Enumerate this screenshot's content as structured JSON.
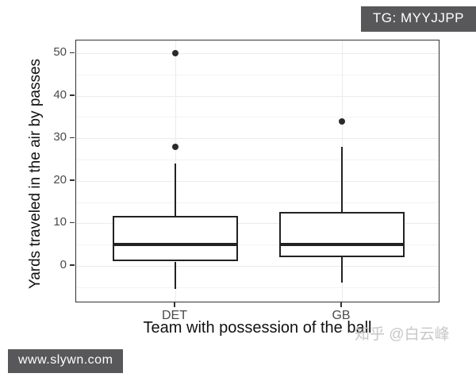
{
  "badges": {
    "tg": "TG: MYYJJPP",
    "site": "www.slywn.com"
  },
  "watermark": "知乎 @白云峰",
  "chart_data": {
    "type": "boxplot",
    "title": "",
    "xlabel": "Team with possession of the ball",
    "ylabel": "Yards traveled in the air by passes",
    "categories": [
      "DET",
      "GB"
    ],
    "y_ticks": [
      0,
      10,
      20,
      30,
      40,
      50
    ],
    "y_minor_ticks": [
      -5,
      5,
      15,
      25,
      35,
      45
    ],
    "ylim": [
      -8.8,
      53
    ],
    "grid": "horizontal major+minor, vertical major at categories",
    "legend": "none",
    "series": [
      {
        "name": "DET",
        "whisker_low": -5.5,
        "q1": 1,
        "median": 5,
        "q3": 11.7,
        "whisker_high": 24,
        "outliers": [
          28,
          50
        ]
      },
      {
        "name": "GB",
        "whisker_low": -4,
        "q1": 2,
        "median": 5,
        "q3": 12.7,
        "whisker_high": 28,
        "outliers": [
          34
        ]
      }
    ]
  },
  "colors": {
    "badge_bg": "#58585a",
    "badge_text": "#ffffff",
    "panel_border": "#333333",
    "grid_major": "#ebebeb",
    "grid_minor": "#f3f3f3",
    "box_stroke": "#222222",
    "outlier_fill": "#2b2b2b",
    "tick_label": "#4a4a4a",
    "axis_title": "#111111",
    "watermark": "#c7c7c7"
  }
}
